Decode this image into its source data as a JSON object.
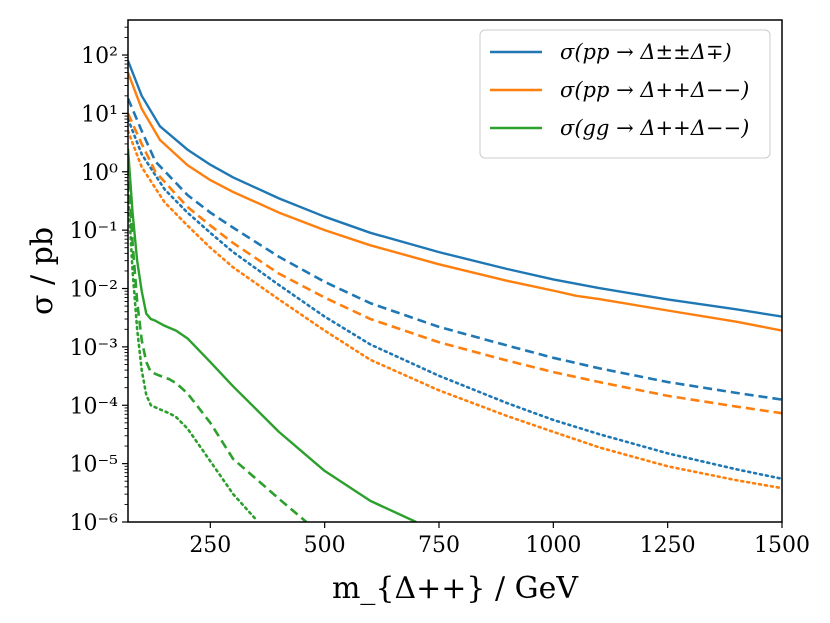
{
  "chart_data": {
    "type": "line",
    "title": "",
    "xlabel": "m_{Δ++} / GeV",
    "ylabel": "σ / pb",
    "xlim": [
      70,
      1500
    ],
    "ylim_log10": [
      -6,
      2.6
    ],
    "x_ticks": [
      250,
      500,
      750,
      1000,
      1250,
      1500
    ],
    "x_tick_labels": [
      "250",
      "500",
      "750",
      "1000",
      "1250",
      "1500"
    ],
    "y_ticks_log10": [
      2,
      1,
      0,
      -1,
      -2,
      -3,
      -4,
      -5,
      -6
    ],
    "y_tick_labels": [
      "10²",
      "10¹",
      "10⁰",
      "10⁻¹",
      "10⁻²",
      "10⁻³",
      "10⁻⁴",
      "10⁻⁵",
      "10⁻⁶"
    ],
    "legend_position": "top-right",
    "legend": [
      {
        "label": "σ(pp → Δ±±Δ∓)",
        "color": "#1f77b4"
      },
      {
        "label": "σ(pp → Δ++Δ−−)",
        "color": "#ff7f0e"
      },
      {
        "label": "σ(gg → Δ++Δ−−)",
        "color": "#2ca02c"
      }
    ],
    "series": [
      {
        "name": "pp_pm_mp_solid",
        "color": "#1f77b4",
        "style": "solid",
        "x": [
          70,
          100,
          140,
          200,
          250,
          300,
          400,
          500,
          600,
          750,
          900,
          1000,
          1100,
          1250,
          1400,
          1500
        ],
        "y": [
          80,
          20,
          6,
          2.4,
          1.32,
          0.8,
          0.35,
          0.17,
          0.09,
          0.042,
          0.0215,
          0.0143,
          0.0102,
          0.0065,
          0.0044,
          0.0033
        ]
      },
      {
        "name": "pp_pm_mp_dashed",
        "color": "#1f77b4",
        "style": "dashed",
        "x": [
          70,
          100,
          130,
          200,
          250,
          300,
          400,
          500,
          600,
          750,
          900,
          1000,
          1100,
          1250,
          1400,
          1500
        ],
        "y": [
          18,
          5,
          1.5,
          0.4,
          0.2,
          0.11,
          0.035,
          0.013,
          0.0056,
          0.0022,
          0.00105,
          0.00065,
          0.00043,
          0.00025,
          0.000163,
          0.000125
        ]
      },
      {
        "name": "pp_pm_mp_dotted",
        "color": "#1f77b4",
        "style": "dotted",
        "x": [
          70,
          100,
          150,
          200,
          250,
          300,
          400,
          500,
          600,
          750,
          900,
          1000,
          1100,
          1250,
          1400,
          1500
        ],
        "y": [
          8,
          2,
          0.5,
          0.2,
          0.09,
          0.042,
          0.0115,
          0.0033,
          0.0011,
          0.00032,
          0.000108,
          5.6e-05,
          3.2e-05,
          1.5e-05,
          8e-06,
          5.5e-06
        ]
      },
      {
        "name": "pp_pp_mm_solid",
        "color": "#ff7f0e",
        "style": "solid",
        "x": [
          70,
          100,
          140,
          200,
          250,
          300,
          400,
          500,
          600,
          750,
          900,
          1000,
          1050,
          1100,
          1250,
          1400,
          1500
        ],
        "y": [
          50,
          12,
          3.5,
          1.3,
          0.72,
          0.45,
          0.2,
          0.1,
          0.055,
          0.026,
          0.0135,
          0.0092,
          0.0075,
          0.0066,
          0.0042,
          0.0027,
          0.0019
        ]
      },
      {
        "name": "pp_pp_mm_dashed",
        "color": "#ff7f0e",
        "style": "dashed",
        "x": [
          70,
          100,
          130,
          200,
          250,
          300,
          400,
          500,
          600,
          750,
          900,
          1000,
          1100,
          1250,
          1400,
          1500
        ],
        "y": [
          10,
          3,
          1,
          0.25,
          0.12,
          0.06,
          0.018,
          0.007,
          0.003,
          0.0012,
          0.00058,
          0.00037,
          0.00025,
          0.000145,
          9.5e-05,
          7.3e-05
        ]
      },
      {
        "name": "pp_pp_mm_dotted",
        "color": "#ff7f0e",
        "style": "dotted",
        "x": [
          70,
          100,
          150,
          200,
          250,
          300,
          400,
          500,
          600,
          750,
          900,
          1000,
          1100,
          1250,
          1400,
          1500
        ],
        "y": [
          5,
          1.2,
          0.3,
          0.12,
          0.05,
          0.023,
          0.0065,
          0.0019,
          0.0006,
          0.00018,
          6.5e-05,
          3.5e-05,
          1.9e-05,
          9e-06,
          5.2e-06,
          3.8e-06
        ]
      },
      {
        "name": "gg_pp_mm_solid",
        "color": "#2ca02c",
        "style": "solid",
        "x": [
          70,
          80,
          90,
          100,
          110,
          120,
          130,
          150,
          175,
          200,
          250,
          300,
          400,
          500,
          600,
          700
        ],
        "y": [
          2.5,
          0.2,
          0.03,
          0.009,
          0.0037,
          0.003,
          0.0028,
          0.0023,
          0.0019,
          0.0014,
          0.00055,
          0.00021,
          3.5e-05,
          7.5e-06,
          2.3e-06,
          1e-06
        ]
      },
      {
        "name": "gg_pp_mm_dashed",
        "color": "#2ca02c",
        "style": "dashed",
        "x": [
          70,
          80,
          90,
          100,
          110,
          120,
          140,
          160,
          175,
          200,
          250,
          300,
          350,
          400,
          460
        ],
        "y": [
          1.2,
          0.06,
          0.006,
          0.0013,
          0.00055,
          0.00037,
          0.00032,
          0.00028,
          0.00024,
          0.00016,
          5e-05,
          1.2e-05,
          5.5e-06,
          2.5e-06,
          1e-06
        ]
      },
      {
        "name": "gg_pp_mm_dotted",
        "color": "#2ca02c",
        "style": "dotted",
        "x": [
          70,
          80,
          90,
          100,
          110,
          120,
          140,
          160,
          175,
          200,
          250,
          300,
          350
        ],
        "y": [
          0.5,
          0.02,
          0.002,
          0.0004,
          0.00015,
          0.0001,
          8.5e-05,
          7.3e-05,
          6.3e-05,
          4e-05,
          1.1e-05,
          3e-06,
          1.1e-06
        ]
      }
    ]
  }
}
